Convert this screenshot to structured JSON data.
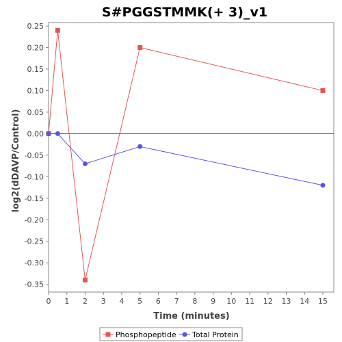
{
  "chart_data": {
    "type": "line",
    "title": "S#PGGSTMMK(+ 3)_v1",
    "xlabel": "Time (minutes)",
    "ylabel": "log2(dDAVP/Control)",
    "xlim": [
      0,
      15.6
    ],
    "ylim": [
      -0.368,
      0.258
    ],
    "x_ticks": [
      0,
      1,
      2,
      3,
      4,
      5,
      6,
      7,
      8,
      9,
      10,
      11,
      12,
      13,
      14,
      15
    ],
    "y_ticks": [
      0.25,
      0.2,
      0.15,
      0.1,
      0.05,
      0.0,
      -0.05,
      -0.1,
      -0.15,
      -0.2,
      -0.25,
      -0.3,
      -0.35
    ],
    "y_tick_labels": [
      "0.25",
      "0.20",
      "0.15",
      "0.10",
      "0.05",
      "0.00",
      "-0.05",
      "-0.10",
      "-0.15",
      "-0.20",
      "-0.25",
      "-0.30",
      "-0.35"
    ],
    "zero_line": true,
    "grid": false,
    "legend_position": "bottom-center",
    "series": [
      {
        "name": "Phosphopeptide",
        "color": "#e85454",
        "marker": "square",
        "x": [
          0,
          0.5,
          2,
          5,
          15
        ],
        "y": [
          0.0,
          0.24,
          -0.34,
          0.2,
          0.1
        ]
      },
      {
        "name": "Total Protein",
        "color": "#5555e8",
        "marker": "circle",
        "x": [
          0,
          0.5,
          2,
          5,
          15
        ],
        "y": [
          0.0,
          0.0,
          -0.07,
          -0.03,
          -0.12
        ]
      }
    ]
  }
}
